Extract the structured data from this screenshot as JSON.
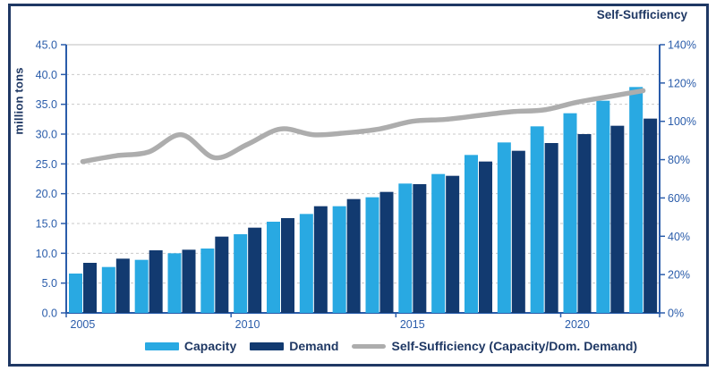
{
  "colors": {
    "capacity": "#29A9E2",
    "demand": "#123A70",
    "line": "#ADADAD",
    "title": "#1F3864",
    "tick_text": "#2A5CAA",
    "axis": "#2A5CAA",
    "grid": "#C9C9C9",
    "frame_border": "#1F3864"
  },
  "left_axis": {
    "title": "million tons",
    "tick_labels": [
      "0.0",
      "5.0",
      "10.0",
      "15.0",
      "20.0",
      "25.0",
      "30.0",
      "35.0",
      "40.0",
      "45.0"
    ],
    "min": 0,
    "max": 45,
    "step": 5
  },
  "right_axis": {
    "title": "Self-Sufficiency",
    "tick_labels": [
      "0%",
      "20%",
      "40%",
      "60%",
      "80%",
      "100%",
      "120%",
      "140%"
    ],
    "min": 0,
    "max": 140,
    "step": 20
  },
  "x_axis": {
    "labeled_years": [
      "2005",
      "2010",
      "2015",
      "2020"
    ],
    "labeled_indices": [
      0,
      5,
      10,
      15
    ]
  },
  "legend": [
    {
      "label": "Capacity",
      "marker": "bar",
      "color": "#29A9E2"
    },
    {
      "label": "Demand",
      "marker": "bar",
      "color": "#123A70"
    },
    {
      "label": "Self-Sufficiency (Capacity/Dom. Demand)",
      "marker": "line",
      "color": "#ADADAD"
    }
  ],
  "chart_data": {
    "type": "bar",
    "subtype": "grouped-bars-with-line",
    "categories": [
      2005,
      2006,
      2007,
      2008,
      2009,
      2010,
      2011,
      2012,
      2013,
      2014,
      2015,
      2016,
      2017,
      2018,
      2019,
      2020,
      2021,
      2022
    ],
    "series": [
      {
        "name": "Capacity",
        "type": "bar",
        "axis": "left",
        "values": [
          6.6,
          7.7,
          8.9,
          10.0,
          10.8,
          13.2,
          15.3,
          16.6,
          17.9,
          19.4,
          21.7,
          23.3,
          26.5,
          28.6,
          31.3,
          33.5,
          35.6,
          37.9
        ]
      },
      {
        "name": "Demand",
        "type": "bar",
        "axis": "left",
        "values": [
          8.4,
          9.1,
          10.5,
          10.6,
          12.8,
          14.3,
          15.9,
          17.9,
          19.1,
          20.3,
          21.6,
          23.0,
          25.4,
          27.2,
          28.5,
          30.0,
          31.4,
          32.6
        ]
      },
      {
        "name": "Self-Sufficiency (Capacity/Dom. Demand)",
        "type": "line",
        "axis": "right",
        "values": [
          79,
          82,
          84,
          93,
          81,
          88,
          96,
          93,
          94,
          96,
          100,
          101,
          103,
          105,
          106,
          110,
          113,
          116
        ]
      }
    ],
    "title": "",
    "xlabel": "",
    "ylabel_left": "million tons",
    "ylabel_right": "Self-Sufficiency",
    "left_ylim": [
      0,
      45
    ],
    "right_ylim": [
      0,
      140
    ],
    "grid": true,
    "legend_position": "bottom"
  }
}
